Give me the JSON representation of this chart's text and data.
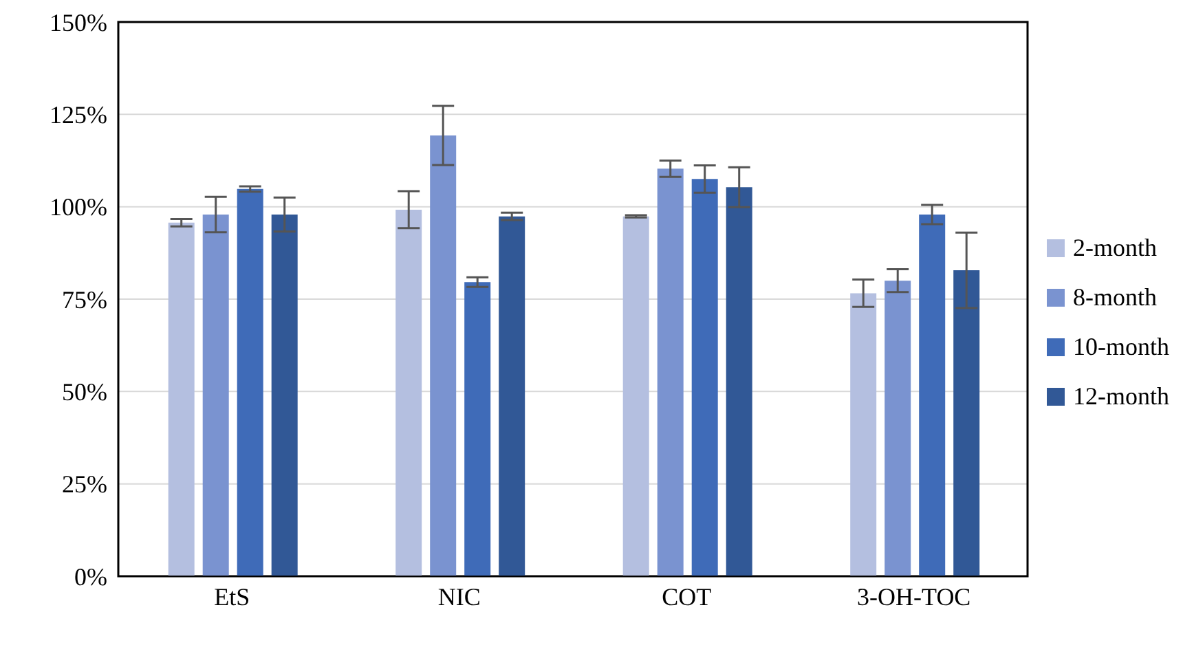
{
  "chart_data": {
    "type": "bar",
    "categories": [
      "EtS",
      "NIC",
      "COT",
      "3-OH-TOC"
    ],
    "series": [
      {
        "name": "2-month",
        "color": "#b4bfe0",
        "values": [
          95.7,
          99.2,
          97.4,
          76.6
        ],
        "errors": [
          1,
          5,
          0.3,
          3.7
        ]
      },
      {
        "name": "8-month",
        "color": "#7a93d0",
        "values": [
          97.9,
          119.3,
          110.3,
          80
        ],
        "errors": [
          4.8,
          8,
          2.2,
          3.1
        ]
      },
      {
        "name": "10-month",
        "color": "#3f6bb8",
        "values": [
          104.8,
          79.6,
          107.5,
          97.9
        ],
        "errors": [
          0.7,
          1.3,
          3.7,
          2.6
        ]
      },
      {
        "name": "12-month",
        "color": "#315896",
        "values": [
          97.9,
          97.4,
          105.3,
          82.8
        ],
        "errors": [
          4.6,
          1,
          5.4,
          10.2
        ]
      }
    ],
    "ylim": [
      0,
      150
    ],
    "yticks": [
      {
        "value": 0,
        "label": "0%"
      },
      {
        "value": 25,
        "label": "25%"
      },
      {
        "value": 50,
        "label": "50%"
      },
      {
        "value": 75,
        "label": "75%"
      },
      {
        "value": 100,
        "label": "100%"
      },
      {
        "value": 125,
        "label": "125%"
      },
      {
        "value": 150,
        "label": "150%"
      }
    ],
    "grid": "y",
    "legend": "right"
  }
}
